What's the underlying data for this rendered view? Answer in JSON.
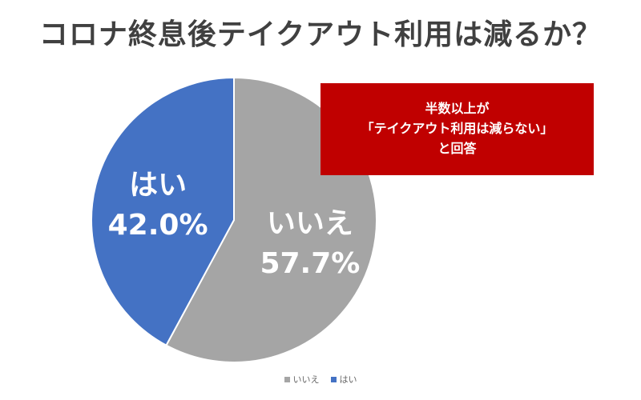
{
  "chart_data": {
    "type": "pie",
    "title": "コロナ終息後テイクアウト利用は減るか？",
    "slices": [
      {
        "label": "いいえ",
        "value": 57.7,
        "value_label": "57.7%",
        "color": "#a5a5a5"
      },
      {
        "label": "はい",
        "value": 42.0,
        "value_label": "42.0%",
        "color": "#4472c4"
      }
    ],
    "start": "12 o'clock",
    "direction": "clockwise",
    "legend_position": "bottom",
    "annotation": {
      "lines": [
        "半数以上が",
        "「テイクアウト利用は減らない」",
        "と回答"
      ],
      "background": "#c00000",
      "text_color": "#ffffff"
    }
  }
}
